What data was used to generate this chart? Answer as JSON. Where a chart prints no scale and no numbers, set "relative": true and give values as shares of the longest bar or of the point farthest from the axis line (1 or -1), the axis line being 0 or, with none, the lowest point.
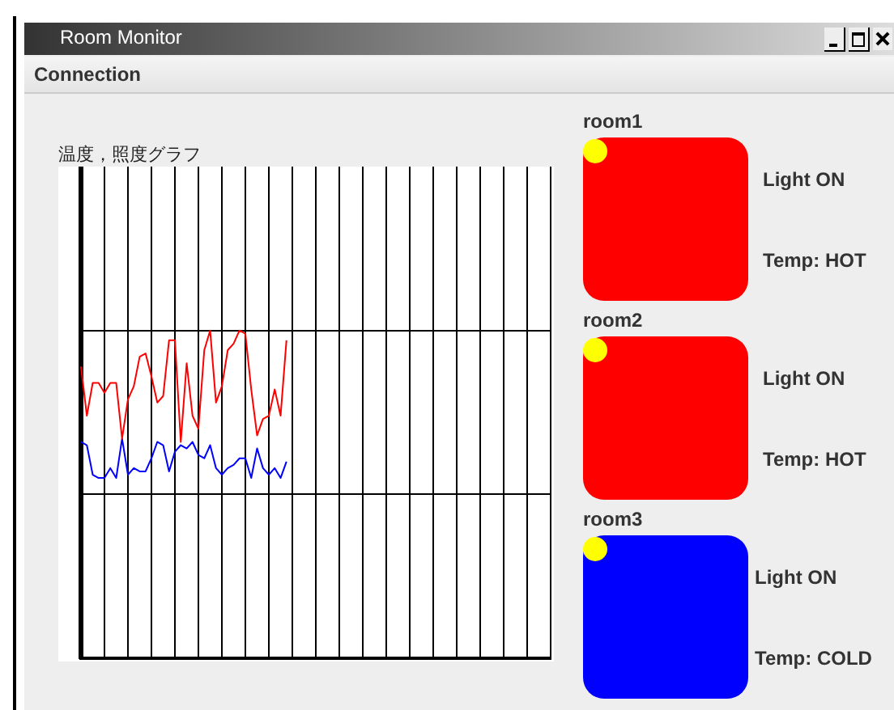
{
  "chart_data": {
    "type": "line",
    "title": "温度，照度グラフ",
    "relative": true,
    "grid": true,
    "tick_labels": false,
    "legend": false,
    "marker": "none",
    "line_style": "solid",
    "categories": [
      null,
      null,
      null,
      null,
      null,
      null,
      null,
      null,
      null,
      null,
      null,
      null,
      null,
      null,
      null,
      null,
      null,
      null,
      null,
      null,
      null,
      null,
      null,
      null,
      null,
      null,
      null,
      null,
      null,
      null,
      null,
      null,
      null,
      null,
      null,
      null,
      null,
      null,
      null,
      null,
      null,
      null,
      null,
      null,
      null,
      null,
      null,
      null,
      null,
      null,
      null,
      null,
      null,
      null,
      null,
      null,
      null,
      null,
      null,
      null,
      null,
      null,
      null,
      null,
      null,
      null,
      null,
      null,
      null,
      null,
      null,
      null,
      null,
      null,
      null,
      null,
      null,
      null,
      null,
      null,
      null
    ],
    "series": [
      {
        "color": "#ff0000",
        "values": [
          0.89,
          0.74,
          0.84,
          0.84,
          0.81,
          0.84,
          0.84,
          0.67,
          0.79,
          0.83,
          0.92,
          0.93,
          0.86,
          0.78,
          0.8,
          0.97,
          0.97,
          0.66,
          0.9,
          0.74,
          0.7,
          0.94,
          1.0,
          0.78,
          0.83,
          0.94,
          0.96,
          1.0,
          0.99,
          0.82,
          0.68,
          0.73,
          0.74,
          0.82,
          0.74,
          0.97,
          null,
          null,
          null,
          null,
          null,
          null,
          null,
          null,
          null,
          null,
          null,
          null,
          null,
          null,
          null,
          null,
          null,
          null,
          null,
          null,
          null,
          null,
          null,
          null,
          null,
          null,
          null,
          null,
          null,
          null,
          null,
          null,
          null,
          null,
          null,
          null,
          null,
          null,
          null,
          null,
          null,
          null,
          null,
          null,
          null
        ]
      },
      {
        "color": "#0000ff",
        "values": [
          0.66,
          0.65,
          0.56,
          0.55,
          0.55,
          0.58,
          0.55,
          0.67,
          0.56,
          0.58,
          0.57,
          0.57,
          0.61,
          0.66,
          0.65,
          0.57,
          0.63,
          0.65,
          0.64,
          0.66,
          0.62,
          0.61,
          0.65,
          0.58,
          0.56,
          0.58,
          0.59,
          0.61,
          0.61,
          0.55,
          0.64,
          0.58,
          0.56,
          0.58,
          0.55,
          0.6,
          null,
          null,
          null,
          null,
          null,
          null,
          null,
          null,
          null,
          null,
          null,
          null,
          null,
          null,
          null,
          null,
          null,
          null,
          null,
          null,
          null,
          null,
          null,
          null,
          null,
          null,
          null,
          null,
          null,
          null,
          null,
          null,
          null,
          null,
          null,
          null,
          null,
          null,
          null,
          null,
          null,
          null,
          null,
          null,
          null
        ]
      }
    ],
    "annotations": [
      "Room Monitor",
      "Connection",
      "room1",
      "Light ON",
      "Temp: HOT",
      "room2",
      "Light ON",
      "Temp: HOT",
      "room3",
      "Light ON",
      "Temp: COLD"
    ]
  }
}
